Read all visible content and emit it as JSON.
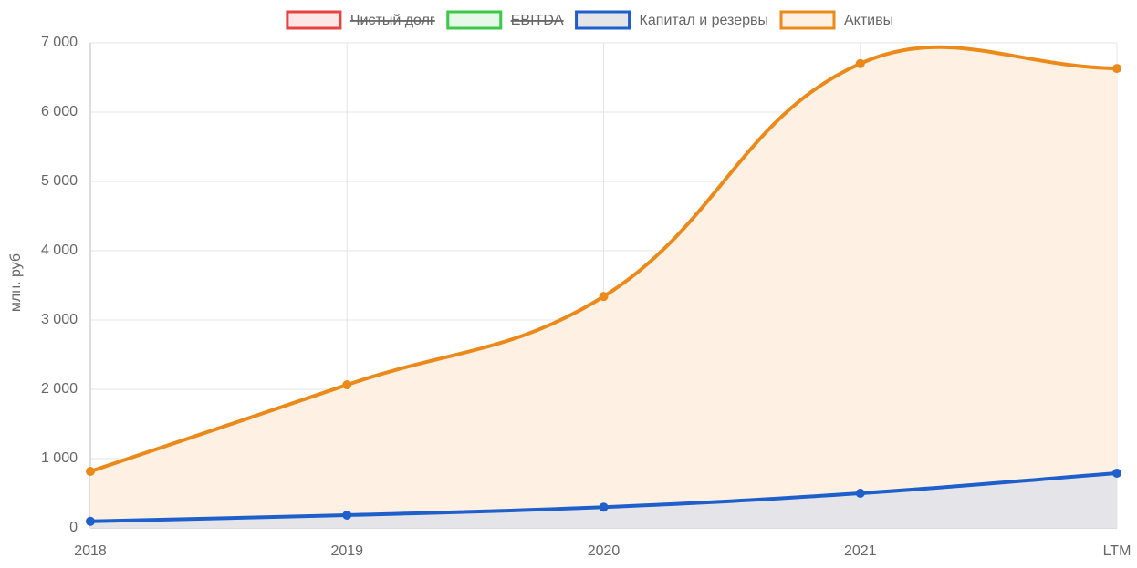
{
  "chart_data": {
    "type": "line",
    "y_label": "млн. руб",
    "categories": [
      "2018",
      "2019",
      "2020",
      "2021",
      "LTM"
    ],
    "series": [
      {
        "name": "Чистый долг",
        "color": "#e8423f",
        "fill": "#fde6e6",
        "hidden": true,
        "values": [
          null,
          null,
          null,
          null,
          null
        ]
      },
      {
        "name": "EBITDA",
        "color": "#3bc94a",
        "fill": "#e6f8e8",
        "hidden": true,
        "values": [
          null,
          null,
          null,
          null,
          null
        ]
      },
      {
        "name": "Капитал и резервы",
        "color": "#1f5fcc",
        "fill": "#e5e4e8",
        "hidden": false,
        "values": [
          95,
          185,
          300,
          500,
          790
        ]
      },
      {
        "name": "Активы",
        "color": "#eb8a1a",
        "fill": "#fef1e3",
        "hidden": false,
        "values": [
          815,
          2065,
          3340,
          6700,
          6630
        ]
      }
    ],
    "ylim": [
      0,
      7000
    ],
    "yticks": [
      0,
      {
        "value": 1000,
        "label": "1 000"
      },
      {
        "value": 2000,
        "label": "2 000"
      },
      {
        "value": 3000,
        "label": "3 000"
      },
      {
        "value": 4000,
        "label": "4 000"
      },
      {
        "value": 5000,
        "label": "5 000"
      },
      {
        "value": 6000,
        "label": "6 000"
      },
      {
        "value": 7000,
        "label": "7 000"
      }
    ],
    "grid": true
  }
}
